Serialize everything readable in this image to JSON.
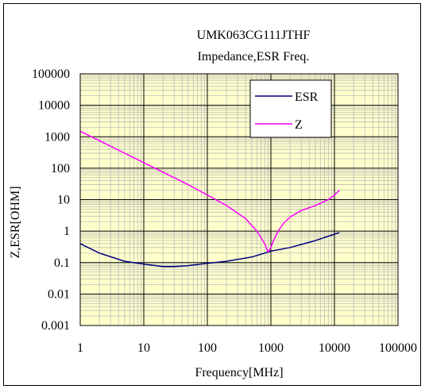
{
  "chart_data": {
    "type": "line",
    "title": "UMK063CG111JTHF",
    "subtitle": "Impedance,ESR  Freq.",
    "xlabel": "Frequency[MHz]",
    "ylabel": "Z,ESR[OHM]",
    "x_scale": "log",
    "y_scale": "log",
    "xlim": [
      1,
      100000
    ],
    "ylim": [
      0.001,
      100000
    ],
    "x_ticks": [
      "1",
      "10",
      "100",
      "1000",
      "10000",
      "100000"
    ],
    "y_ticks": [
      "100000",
      "10000",
      "1000",
      "100",
      "10",
      "1",
      "0.1",
      "0.01",
      "0.001"
    ],
    "grid": true,
    "legend_position": "top-right",
    "colors": {
      "plot_background": "#ffffcc",
      "minor_grid": "#b3b3b3",
      "major_grid": "#000000",
      "esr": "#000080",
      "z": "#ff00ff"
    },
    "series": [
      {
        "name": "ESR",
        "color": "#000080",
        "x": [
          1,
          2,
          5,
          10,
          20,
          30,
          50,
          100,
          200,
          500,
          1000,
          2000,
          5000,
          10000,
          12000
        ],
        "y": [
          0.4,
          0.2,
          0.11,
          0.09,
          0.075,
          0.075,
          0.08,
          0.095,
          0.11,
          0.15,
          0.23,
          0.3,
          0.5,
          0.8,
          0.9
        ]
      },
      {
        "name": "Z",
        "color": "#ff00ff",
        "x": [
          1,
          2,
          5,
          10,
          20,
          50,
          100,
          200,
          400,
          600,
          800,
          900,
          950,
          1000,
          1100,
          1300,
          1600,
          2000,
          3000,
          5000,
          8000,
          10000,
          12000
        ],
        "y": [
          1500,
          750,
          300,
          150,
          75,
          30,
          14,
          6.5,
          2.5,
          1,
          0.4,
          0.22,
          0.25,
          0.3,
          0.5,
          1.0,
          1.8,
          2.8,
          4.5,
          6.5,
          10,
          14,
          20
        ]
      }
    ]
  }
}
